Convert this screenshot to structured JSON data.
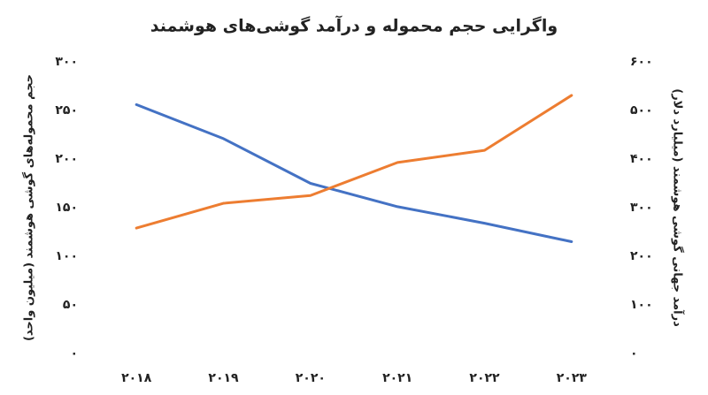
{
  "chart_data": {
    "type": "line",
    "title": "واگرایی حجم محموله و درآمد گوشی‌های هوشمند",
    "y_label": "حجم محموله‌های گوشی هوشمند (میلیون واحد)",
    "y2_label": "درآمد جهانی گوشی هوشمند (میلیارد دلار)",
    "categories": [
      "۲۰۱۸",
      "۲۰۱۹",
      "۲۰۲۰",
      "۲۰۲۱",
      "۲۰۲۲",
      "۲۰۲۳"
    ],
    "series": [
      {
        "color": "#4472c4",
        "values": [
          256,
          221,
          175,
          151,
          134,
          115
        ]
      },
      {
        "color": "#ed7d31",
        "axis": "y2",
        "values": [
          258,
          309,
          325,
          393,
          418,
          531
        ]
      }
    ],
    "ylim": [
      0,
      300
    ],
    "yticks": [
      {
        "value": 0,
        "label": "۰"
      },
      {
        "value": 50,
        "label": "۵۰"
      },
      {
        "value": 100,
        "label": "۱۰۰"
      },
      {
        "value": 150,
        "label": "۱۵۰"
      },
      {
        "value": 200,
        "label": "۲۰۰"
      },
      {
        "value": 250,
        "label": "۲۵۰"
      },
      {
        "value": 300,
        "label": "۳۰۰"
      }
    ],
    "y2lim": [
      0,
      600
    ],
    "y2ticks": [
      {
        "value": 0,
        "label": "۰"
      },
      {
        "value": 100,
        "label": "۱۰۰"
      },
      {
        "value": 200,
        "label": "۲۰۰"
      },
      {
        "value": 300,
        "label": "۳۰۰"
      },
      {
        "value": 400,
        "label": "۴۰۰"
      },
      {
        "value": 500,
        "label": "۵۰۰"
      },
      {
        "value": 600,
        "label": "۶۰۰"
      }
    ],
    "grid": false
  }
}
